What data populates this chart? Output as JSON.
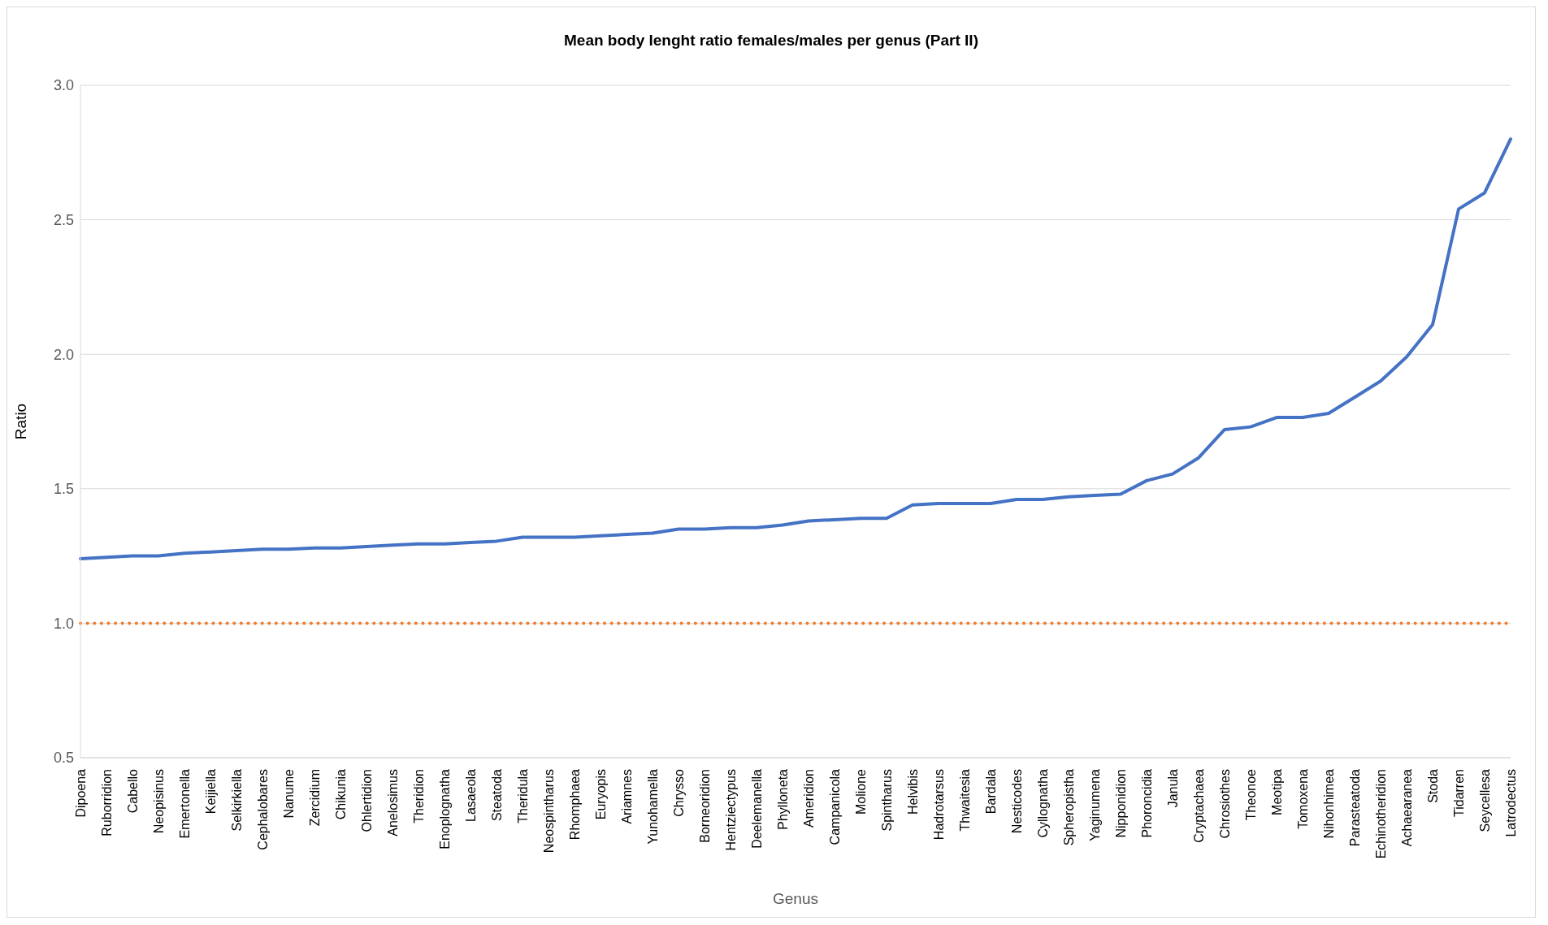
{
  "chart_data": {
    "type": "line",
    "title": "Mean body lenght ratio females/males per genus (Part II)",
    "xlabel": "Genus",
    "ylabel": "Ratio",
    "categories": [
      "Dipoena",
      "Ruborridion",
      "Cabello",
      "Neopisinus",
      "Emertonella",
      "Keijiella",
      "Selkirkiella",
      "Cephalobares",
      "Nanume",
      "Zercidium",
      "Chikunia",
      "Ohlertidion",
      "Anelosimus",
      "Theridion",
      "Enoplognatha",
      "Lasaeola",
      "Steatoda",
      "Theridula",
      "Neospintharus",
      "Rhomphaea",
      "Euryopis",
      "Ariamnes",
      "Yunohamella",
      "Chrysso",
      "Borneoridion",
      "Hentziectypus",
      "Deelemanella",
      "Phylloneta",
      "Ameridion",
      "Campanicola",
      "Molione",
      "Spintharus",
      "Helvibis",
      "Hadrotarsus",
      "Thwaitesia",
      "Bardala",
      "Nesticodes",
      "Cyllognatha",
      "Spheropistha",
      "Yaginumena",
      "Nipponidion",
      "Phoroncidia",
      "Janula",
      "Cryptachaea",
      "Chrosiothes",
      "Theonoe",
      "Meotipa",
      "Tomoxena",
      "Nihonhimea",
      "Parasteatoda",
      "Echinotheridion",
      "Achaearanea",
      "Stoda",
      "Tidarren",
      "Seycellesa",
      "Latrodectus"
    ],
    "series": [
      {
        "color": "#4472c4",
        "line_style": "solid",
        "values": [
          1.24,
          1.245,
          1.25,
          1.25,
          1.26,
          1.265,
          1.27,
          1.275,
          1.275,
          1.28,
          1.28,
          1.285,
          1.29,
          1.295,
          1.295,
          1.3,
          1.305,
          1.32,
          1.32,
          1.32,
          1.325,
          1.33,
          1.335,
          1.35,
          1.35,
          1.355,
          1.355,
          1.365,
          1.38,
          1.385,
          1.39,
          1.39,
          1.44,
          1.445,
          1.445,
          1.445,
          1.46,
          1.46,
          1.47,
          1.475,
          1.48,
          1.53,
          1.555,
          1.615,
          1.72,
          1.73,
          1.765,
          1.765,
          1.78,
          1.84,
          1.9,
          1.99,
          2.11,
          2.54,
          2.6,
          2.8
        ]
      },
      {
        "color": "#ed7d31",
        "line_style": "dotted",
        "values": [
          1,
          1,
          1,
          1,
          1,
          1,
          1,
          1,
          1,
          1,
          1,
          1,
          1,
          1,
          1,
          1,
          1,
          1,
          1,
          1,
          1,
          1,
          1,
          1,
          1,
          1,
          1,
          1,
          1,
          1,
          1,
          1,
          1,
          1,
          1,
          1,
          1,
          1,
          1,
          1,
          1,
          1,
          1,
          1,
          1,
          1,
          1,
          1,
          1,
          1,
          1,
          1,
          1,
          1,
          1,
          1
        ]
      }
    ],
    "ylim": [
      0.5,
      3
    ],
    "yticks": [
      {
        "value": 0.5,
        "label": "0.5"
      },
      {
        "value": 1,
        "label": "1.0"
      },
      {
        "value": 1.5,
        "label": "1.5"
      },
      {
        "value": 2,
        "label": "2.0"
      },
      {
        "value": 2.5,
        "label": "2.5"
      },
      {
        "value": 3,
        "label": "3.0"
      }
    ],
    "grid": "y",
    "legend": false,
    "marker": "none"
  }
}
